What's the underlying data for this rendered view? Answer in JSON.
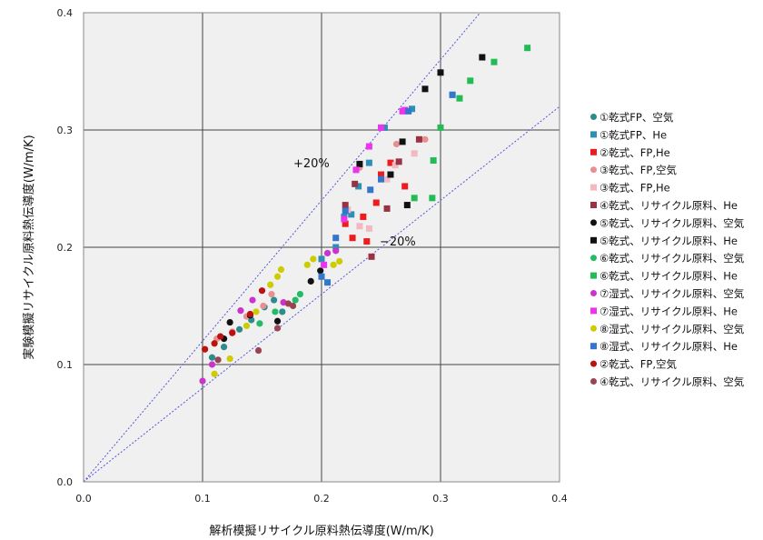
{
  "chart_data": {
    "type": "scatter",
    "xlabel": "解析模擬リサイクル原料熱伝導度(W/m/K)",
    "ylabel": "実験模擬リサイクル原料熱伝導度(W/m/K)",
    "xlim": [
      0,
      0.4
    ],
    "ylim": [
      0,
      0.4
    ],
    "x_ticks": [
      "0.0",
      "0.1",
      "0.2",
      "0.3",
      "0.4"
    ],
    "y_ticks": [
      "0.0",
      "0.1",
      "0.2",
      "0.3",
      "0.4"
    ],
    "grid": true,
    "legend_position": "right",
    "reference_lines": [
      {
        "label": "+20%",
        "slope": 1.2,
        "color": "#5555dd"
      },
      {
        "label": "−20%",
        "slope": 0.8,
        "color": "#5555dd"
      }
    ],
    "series": [
      {
        "name": "①乾式FP、空気",
        "marker": "circle",
        "color": "#2e8b8b",
        "points": [
          [
            0.108,
            0.106
          ],
          [
            0.118,
            0.115
          ],
          [
            0.131,
            0.13
          ],
          [
            0.141,
            0.138
          ],
          [
            0.152,
            0.149
          ],
          [
            0.16,
            0.155
          ],
          [
            0.167,
            0.145
          ]
        ]
      },
      {
        "name": "①乾式FP、He",
        "marker": "square",
        "color": "#2e8fb5",
        "points": [
          [
            0.2,
            0.19
          ],
          [
            0.212,
            0.2
          ],
          [
            0.219,
            0.226
          ],
          [
            0.225,
            0.228
          ],
          [
            0.231,
            0.252
          ],
          [
            0.24,
            0.272
          ],
          [
            0.253,
            0.302
          ],
          [
            0.276,
            0.318
          ],
          [
            0.31,
            0.33
          ]
        ]
      },
      {
        "name": "②乾式、FP,He",
        "marker": "square",
        "color": "#ee1c1c",
        "points": [
          [
            0.22,
            0.22
          ],
          [
            0.226,
            0.208
          ],
          [
            0.235,
            0.226
          ],
          [
            0.238,
            0.205
          ],
          [
            0.246,
            0.238
          ],
          [
            0.25,
            0.262
          ],
          [
            0.258,
            0.272
          ],
          [
            0.27,
            0.252
          ]
        ]
      },
      {
        "name": "③乾式、FP,空気",
        "marker": "circle",
        "color": "#e89090",
        "points": [
          [
            0.112,
            0.122
          ],
          [
            0.125,
            0.128
          ],
          [
            0.137,
            0.141
          ],
          [
            0.151,
            0.15
          ],
          [
            0.158,
            0.16
          ],
          [
            0.232,
            0.268
          ],
          [
            0.263,
            0.288
          ],
          [
            0.287,
            0.292
          ]
        ]
      },
      {
        "name": "③乾式、FP,He",
        "marker": "square",
        "color": "#f4b8c0",
        "points": [
          [
            0.222,
            0.232
          ],
          [
            0.232,
            0.218
          ],
          [
            0.24,
            0.216
          ],
          [
            0.255,
            0.258
          ],
          [
            0.262,
            0.27
          ],
          [
            0.278,
            0.28
          ]
        ]
      },
      {
        "name": "④乾式、リサイクル原料、He",
        "marker": "square",
        "color": "#993344",
        "points": [
          [
            0.22,
            0.236
          ],
          [
            0.228,
            0.254
          ],
          [
            0.242,
            0.192
          ],
          [
            0.255,
            0.233
          ],
          [
            0.265,
            0.273
          ],
          [
            0.282,
            0.292
          ]
        ]
      },
      {
        "name": "⑤乾式、リサイクル原料、空気",
        "marker": "circle",
        "color": "#111111",
        "points": [
          [
            0.118,
            0.122
          ],
          [
            0.123,
            0.136
          ],
          [
            0.14,
            0.142
          ],
          [
            0.163,
            0.137
          ],
          [
            0.191,
            0.171
          ],
          [
            0.199,
            0.18
          ]
        ]
      },
      {
        "name": "⑤乾式、リサイクル原料、He",
        "marker": "square",
        "color": "#111111",
        "points": [
          [
            0.232,
            0.271
          ],
          [
            0.258,
            0.262
          ],
          [
            0.268,
            0.29
          ],
          [
            0.272,
            0.236
          ],
          [
            0.287,
            0.335
          ],
          [
            0.3,
            0.349
          ],
          [
            0.335,
            0.362
          ]
        ]
      },
      {
        "name": "⑥乾式、リサイクル原料、空気",
        "marker": "circle",
        "color": "#22bb66",
        "points": [
          [
            0.148,
            0.135
          ],
          [
            0.161,
            0.145
          ],
          [
            0.178,
            0.155
          ],
          [
            0.182,
            0.16
          ]
        ]
      },
      {
        "name": "⑥乾式、リサイクル原料、He",
        "marker": "square",
        "color": "#22bb55",
        "points": [
          [
            0.278,
            0.242
          ],
          [
            0.293,
            0.242
          ],
          [
            0.294,
            0.274
          ],
          [
            0.3,
            0.302
          ],
          [
            0.316,
            0.327
          ],
          [
            0.325,
            0.342
          ],
          [
            0.345,
            0.358
          ],
          [
            0.373,
            0.37
          ]
        ]
      },
      {
        "name": "⑦湿式、リサイクル原料、空気",
        "marker": "circle",
        "color": "#cc33cc",
        "points": [
          [
            0.1,
            0.086
          ],
          [
            0.108,
            0.1
          ],
          [
            0.132,
            0.146
          ],
          [
            0.142,
            0.155
          ],
          [
            0.168,
            0.153
          ],
          [
            0.205,
            0.195
          ],
          [
            0.212,
            0.197
          ]
        ]
      },
      {
        "name": "⑦湿式、リサイクル原料、He",
        "marker": "square",
        "color": "#ee33ee",
        "points": [
          [
            0.202,
            0.185
          ],
          [
            0.219,
            0.224
          ],
          [
            0.229,
            0.266
          ],
          [
            0.24,
            0.286
          ],
          [
            0.25,
            0.302
          ],
          [
            0.268,
            0.316
          ],
          [
            0.27,
            0.317
          ]
        ]
      },
      {
        "name": "⑧湿式、リサイクル原料、空気",
        "marker": "circle",
        "color": "#cccc00",
        "points": [
          [
            0.11,
            0.092
          ],
          [
            0.123,
            0.105
          ],
          [
            0.137,
            0.133
          ],
          [
            0.145,
            0.145
          ],
          [
            0.157,
            0.168
          ],
          [
            0.163,
            0.175
          ],
          [
            0.166,
            0.181
          ],
          [
            0.188,
            0.185
          ],
          [
            0.193,
            0.19
          ],
          [
            0.21,
            0.185
          ],
          [
            0.215,
            0.188
          ]
        ]
      },
      {
        "name": "⑧湿式、リサイクル原料、He",
        "marker": "square",
        "color": "#3377cc",
        "points": [
          [
            0.2,
            0.175
          ],
          [
            0.205,
            0.17
          ],
          [
            0.212,
            0.208
          ],
          [
            0.22,
            0.231
          ],
          [
            0.241,
            0.249
          ],
          [
            0.25,
            0.258
          ],
          [
            0.273,
            0.316
          ],
          [
            0.31,
            0.33
          ]
        ]
      },
      {
        "name": "②乾式、FP,空気",
        "marker": "circle",
        "color": "#bb1111",
        "points": [
          [
            0.102,
            0.113
          ],
          [
            0.11,
            0.118
          ],
          [
            0.115,
            0.124
          ],
          [
            0.125,
            0.127
          ],
          [
            0.14,
            0.143
          ],
          [
            0.15,
            0.163
          ]
        ]
      },
      {
        "name": "④乾式、リサイクル原料、空気",
        "marker": "circle",
        "color": "#994455",
        "points": [
          [
            0.113,
            0.104
          ],
          [
            0.147,
            0.112
          ],
          [
            0.163,
            0.131
          ],
          [
            0.172,
            0.152
          ],
          [
            0.176,
            0.15
          ]
        ]
      }
    ]
  }
}
